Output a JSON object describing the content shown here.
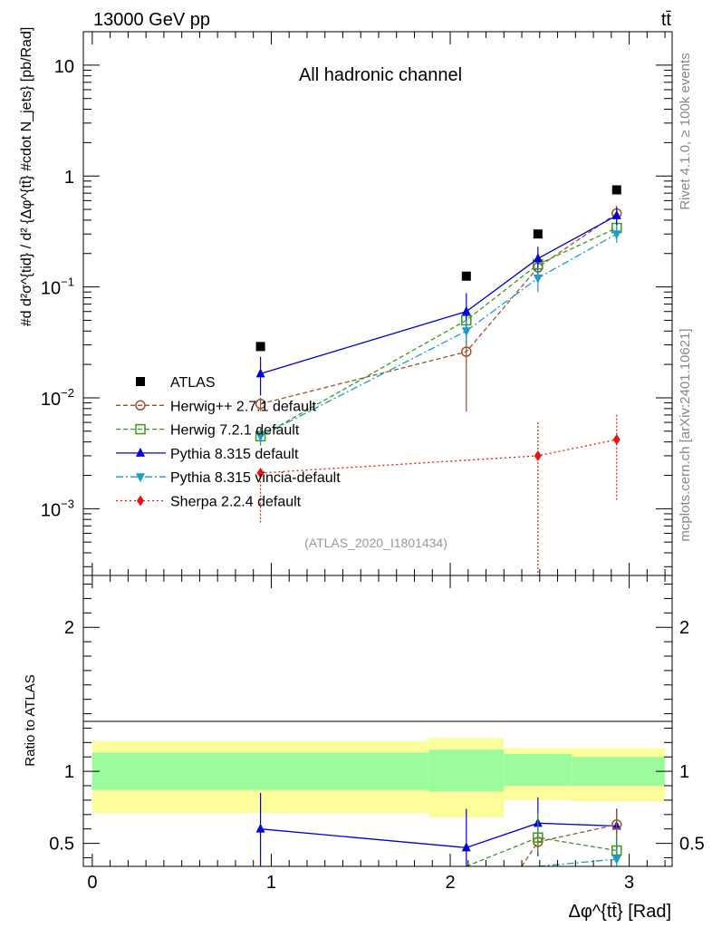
{
  "header": {
    "energy_label": "13000 GeV pp",
    "process_label": "tt̄",
    "channel_label": "All hadronic channel",
    "analysis_id": "(ATLAS_2020_I1801434)",
    "rivet_label": "Rivet 4.1.0, ≥ 100k events",
    "mcplots_label": "mcplots.cern.ch [arXiv:2401.10621]"
  },
  "axes": {
    "xlabel": "Δφ^{tt̄} [Rad]",
    "ylabel_main": "#d d²σ^{tid} / d² {Δφ^{tt̄} #cdot N_jets} [pb/Rad]",
    "ylabel_ratio": "Ratio to ATLAS"
  },
  "chart_data": [
    {
      "type": "scatter",
      "panel": "main",
      "yscale": "log",
      "xlim": [
        -0.05,
        3.24
      ],
      "ylim": [
        0.00025,
        20
      ],
      "x_ticks": [
        "0",
        "1",
        "2",
        "3"
      ],
      "y_ticks": [
        "10^{-3}",
        "10^{-2}",
        "10^{-1}",
        "1",
        "10"
      ],
      "legend_position": "lower-left",
      "series": [
        {
          "name": "ATLAS",
          "marker": "square",
          "color": "#000000",
          "x": [
            0.94,
            2.09,
            2.49,
            2.93
          ],
          "y": [
            0.029,
            0.125,
            0.3,
            0.75
          ]
        },
        {
          "name": "Herwig++ 2.7.1 default",
          "marker": "circle-open",
          "line": "dashed",
          "color": "#a0522d",
          "x": [
            0.94,
            2.09,
            2.49,
            2.93
          ],
          "y": [
            0.0088,
            0.026,
            0.15,
            0.46
          ],
          "yerr_low": [
            0.0012,
            0.0185,
            0.04,
            0.08
          ],
          "yerr_high": [
            0.0012,
            0.018,
            0.04,
            0.08
          ]
        },
        {
          "name": "Herwig 7.2.1 default",
          "marker": "square-open",
          "line": "dashed",
          "color": "#3a9a20",
          "x": [
            0.94,
            2.09,
            2.49,
            2.93
          ],
          "y": [
            0.0045,
            0.05,
            0.16,
            0.34
          ],
          "yerr_low": [
            0.0008,
            0.01,
            0.03,
            0.05
          ],
          "yerr_high": [
            0.0008,
            0.01,
            0.03,
            0.05
          ]
        },
        {
          "name": "Pythia 8.315 default",
          "marker": "triangle-up",
          "line": "solid",
          "color": "#0000dd",
          "x": [
            0.94,
            2.09,
            2.49,
            2.93
          ],
          "y": [
            0.0165,
            0.06,
            0.18,
            0.44
          ],
          "yerr_low": [
            0.006,
            0.025,
            0.05,
            0.08
          ],
          "yerr_high": [
            0.007,
            0.028,
            0.05,
            0.08
          ]
        },
        {
          "name": "Pythia 8.315 vincia-default",
          "marker": "triangle-down",
          "line": "dashdot",
          "color": "#1a9dc8",
          "x": [
            0.94,
            2.09,
            2.49,
            2.93
          ],
          "y": [
            0.0045,
            0.04,
            0.12,
            0.3
          ],
          "yerr_low": [
            0.0006,
            0.01,
            0.03,
            0.05
          ],
          "yerr_high": [
            0.0006,
            0.01,
            0.03,
            0.05
          ]
        },
        {
          "name": "Sherpa 2.2.4 default",
          "marker": "diamond",
          "line": "dotted",
          "color": "#ee1111",
          "x": [
            0.94,
            2.49,
            2.93
          ],
          "y": [
            0.0021,
            0.003,
            0.0042
          ],
          "yerr_low": [
            0.00135,
            0.0028,
            0.003
          ],
          "yerr_high": [
            0.0,
            0.0031,
            0.0031
          ]
        }
      ]
    },
    {
      "type": "scatter",
      "panel": "ratio",
      "yscale": "linear",
      "xlim": [
        -0.05,
        3.24
      ],
      "ylim": [
        0.34,
        2.36
      ],
      "y_ticks": [
        "0.5",
        "1",
        "2"
      ],
      "bands": {
        "bin_edges": [
          0.0,
          1.88,
          2.3,
          2.68,
          3.2
        ],
        "inner": [
          [
            0.87,
            1.13
          ],
          [
            0.86,
            1.15
          ],
          [
            0.9,
            1.12
          ],
          [
            0.9,
            1.1
          ]
        ],
        "outer": [
          [
            0.71,
            1.21
          ],
          [
            0.68,
            1.23
          ],
          [
            0.8,
            1.16
          ],
          [
            0.79,
            1.16
          ]
        ],
        "inner_color": "#9cfb9c",
        "outer_color": "#fdfd9c"
      },
      "series": [
        {
          "name": "Pythia 8.315 default",
          "color": "#0000dd",
          "x": [
            0.94,
            2.09,
            2.49,
            2.93
          ],
          "y": [
            0.6,
            0.47,
            0.64,
            0.62
          ],
          "yerr_low": [
            0.26,
            0.2,
            0.23,
            0.2
          ],
          "yerr_high": [
            0.25,
            0.27,
            0.18,
            0.12
          ]
        },
        {
          "name": "Herwig++ 2.7.1 default",
          "color": "#a0522d",
          "x": [
            2.4,
            2.49,
            2.93
          ],
          "y": [
            0.34,
            0.51,
            0.63
          ],
          "yerr_low": [
            0.0,
            0.08,
            0.09
          ],
          "yerr_high": [
            0.0,
            0.08,
            0.1
          ]
        },
        {
          "name": "Herwig 7.2.1 default",
          "color": "#3a9a20",
          "x": [
            2.09,
            2.49,
            2.93
          ],
          "y": [
            0.34,
            0.54,
            0.45
          ],
          "yerr_low": [
            0.0,
            0.1,
            0.07
          ],
          "yerr_high": [
            0.0,
            0.17,
            0.11
          ]
        },
        {
          "name": "Pythia 8.315 vincia-default",
          "color": "#1a9dc8",
          "x": [
            2.49,
            2.93
          ],
          "y": [
            0.34,
            0.39
          ],
          "yerr_low": [
            0.0,
            0.05
          ],
          "yerr_high": [
            0.0,
            0.07
          ]
        }
      ]
    }
  ]
}
